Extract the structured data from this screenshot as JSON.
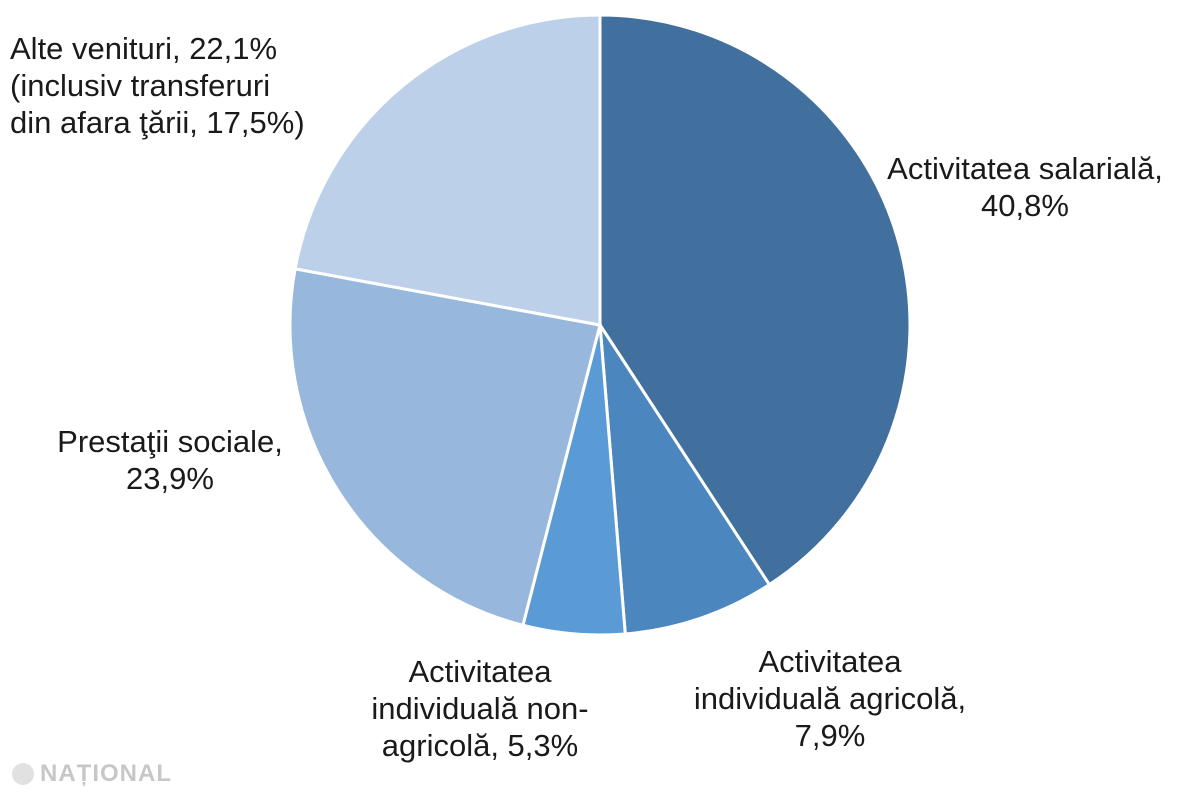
{
  "chart_data": {
    "type": "pie",
    "slices": [
      {
        "name": "Activitatea salarială",
        "value": 40.8,
        "color": "#41709e"
      },
      {
        "name": "Activitatea individuală agricolă",
        "value": 7.9,
        "color": "#4b86bf"
      },
      {
        "name": "Activitatea individuală non-agricolă",
        "value": 5.3,
        "color": "#5b9bd5"
      },
      {
        "name": "Prestaţii sociale",
        "value": 23.9,
        "color": "#98b7dd"
      },
      {
        "name": "Alte venituri",
        "value": 22.1,
        "color": "#bdd0e9",
        "note": "inclusiv transferuri din afara ţării, 17,5%"
      }
    ],
    "labels": [
      [
        "Activitatea salarială,",
        "40,8%"
      ],
      [
        "Activitatea",
        "individuală agricolă,",
        "7,9%"
      ],
      [
        "Activitatea",
        "individuală non-",
        "agricolă, 5,3%"
      ],
      [
        "Prestaţii sociale,",
        "23,9%"
      ],
      [
        "Alte venituri, 22,1%",
        "(inclusiv transferuri",
        "din afara ţării, 17,5%)"
      ]
    ]
  },
  "watermark": {
    "text": "NAȚIONAL"
  }
}
